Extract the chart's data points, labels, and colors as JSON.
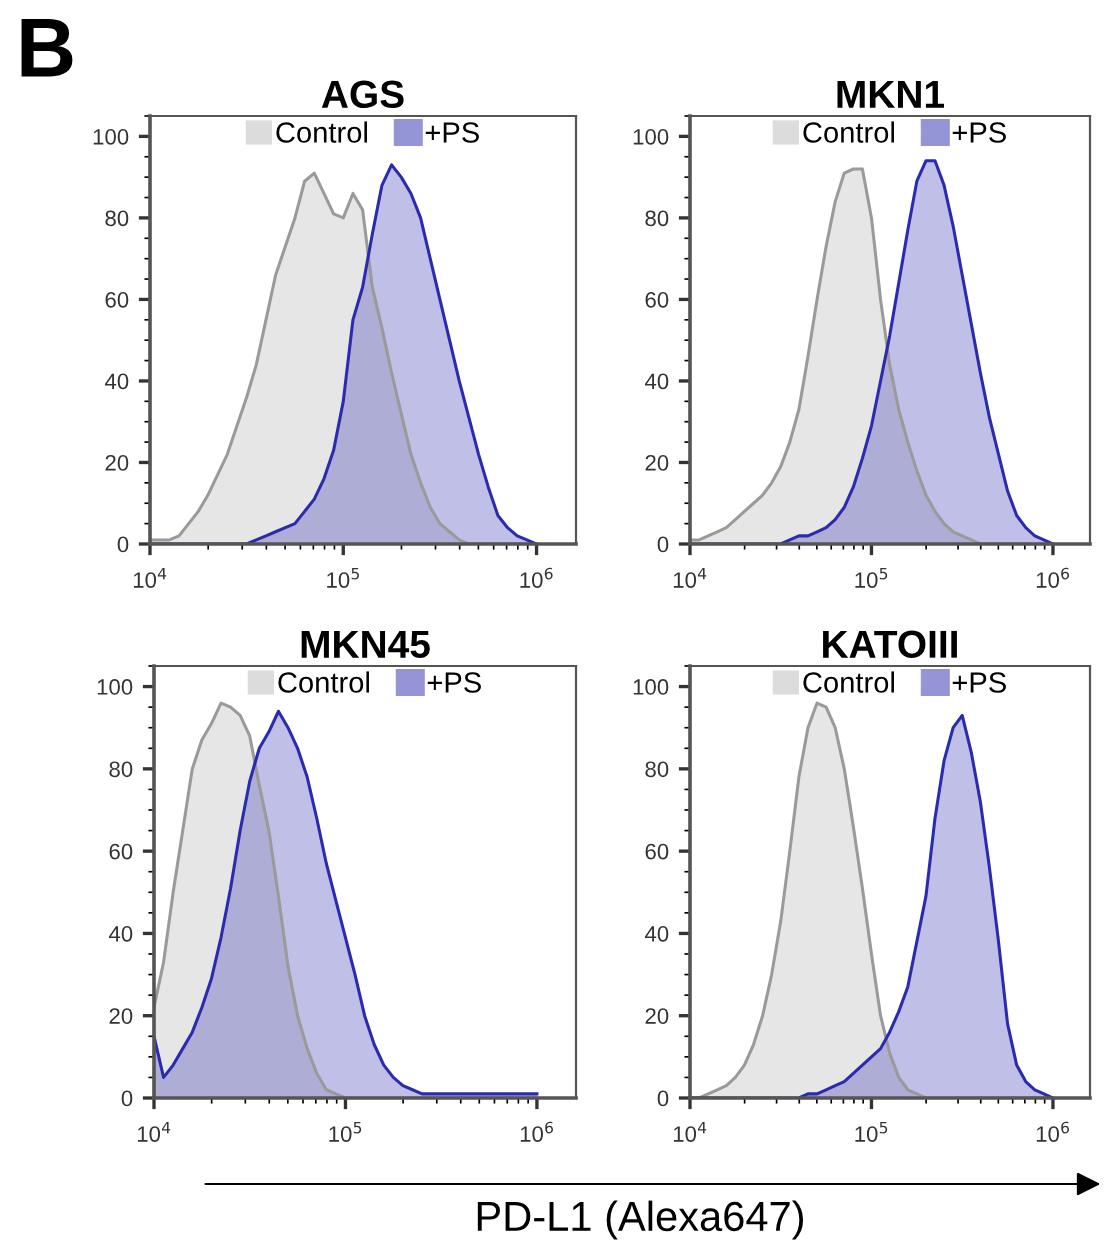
{
  "chart_data": [
    {
      "type": "area",
      "title": "AGS",
      "annotations": [
        "B"
      ],
      "legend": "top",
      "xlim": [
        10000,
        1600000
      ],
      "ylim": [
        0,
        105
      ],
      "log": "x",
      "xticks": [
        {
          "value": 10000,
          "label": "10$^{4}$"
        },
        {
          "value": 100000,
          "label": "10$^{5}$"
        },
        {
          "value": 1000000,
          "label": "10$^{6}$"
        }
      ],
      "yticks": [
        0,
        20,
        40,
        60,
        80,
        100
      ],
      "x": [
        10000,
        11220,
        12590,
        14130,
        15850,
        17780,
        19950,
        22390,
        25120,
        28180,
        31620,
        35480,
        39810,
        44670,
        50120,
        56230,
        63100,
        70790,
        79430,
        89130,
        100000,
        112200,
        125900,
        141300,
        158500,
        177800,
        199500,
        223900,
        251200,
        281800,
        316200,
        354800,
        398100,
        446700,
        501200,
        562300,
        631000,
        707900,
        794300,
        891300,
        1000000
      ],
      "series": [
        {
          "name": "Control",
          "color": "#9a9a9a",
          "values": [
            1,
            1,
            1,
            2,
            5,
            8,
            12,
            17,
            22,
            29,
            36,
            44,
            55,
            66,
            73,
            80,
            89,
            91,
            86,
            81,
            80,
            86,
            82,
            63,
            53,
            42,
            32,
            22,
            15,
            9,
            5,
            3,
            1,
            0,
            0,
            0,
            0,
            0,
            0,
            0,
            0
          ]
        },
        {
          "name": "+PS",
          "color": "#2b2bb0",
          "values": [
            0,
            0,
            0,
            0,
            0,
            0,
            0,
            0,
            0,
            0,
            0,
            1,
            2,
            3,
            4,
            5,
            8,
            11,
            16,
            23,
            35,
            55,
            63,
            76,
            88,
            93,
            90,
            86,
            80,
            70,
            60,
            50,
            40,
            31,
            22,
            14,
            7,
            4,
            2,
            1,
            0
          ]
        }
      ]
    },
    {
      "type": "area",
      "title": "MKN1",
      "legend": "top",
      "xlim": [
        10000,
        1600000
      ],
      "ylim": [
        0,
        105
      ],
      "log": "x",
      "xticks": [
        {
          "value": 10000,
          "label": "10$^{4}$"
        },
        {
          "value": 100000,
          "label": "10$^{5}$"
        },
        {
          "value": 1000000,
          "label": "10$^{6}$"
        }
      ],
      "yticks": [
        0,
        20,
        40,
        60,
        80,
        100
      ],
      "x": [
        10000,
        11220,
        12590,
        14130,
        15850,
        17780,
        19950,
        22390,
        25120,
        28180,
        31620,
        35480,
        39810,
        44670,
        50120,
        56230,
        63100,
        70790,
        79430,
        89130,
        100000,
        112200,
        125900,
        141300,
        158500,
        177800,
        199500,
        223900,
        251200,
        281800,
        316200,
        354800,
        398100,
        446700,
        501200,
        562300,
        631000,
        707900,
        794300,
        891300,
        1000000
      ],
      "series": [
        {
          "name": "Control",
          "color": "#9a9a9a",
          "values": [
            1,
            1,
            2,
            3,
            4,
            6,
            8,
            10,
            12,
            15,
            19,
            25,
            33,
            46,
            60,
            73,
            84,
            91,
            92,
            92,
            80,
            60,
            44,
            33,
            25,
            18,
            12,
            8,
            5,
            3,
            2,
            1,
            0,
            0,
            0,
            0,
            0,
            0,
            0,
            0,
            0
          ]
        },
        {
          "name": "+PS",
          "color": "#2b2bb0",
          "values": [
            0,
            0,
            0,
            0,
            0,
            0,
            0,
            0,
            0,
            0,
            0,
            1,
            2,
            2,
            3,
            4,
            6,
            9,
            14,
            21,
            29,
            40,
            51,
            64,
            77,
            89,
            94,
            94,
            88,
            78,
            66,
            54,
            42,
            31,
            22,
            13,
            7,
            4,
            2,
            1,
            0
          ]
        }
      ]
    },
    {
      "type": "area",
      "title": "MKN45",
      "legend": "top",
      "xlim": [
        10000,
        1600000
      ],
      "ylim": [
        0,
        105
      ],
      "log": "x",
      "xticks": [
        {
          "value": 10000,
          "label": "10$^{4}$"
        },
        {
          "value": 100000,
          "label": "10$^{5}$"
        },
        {
          "value": 1000000,
          "label": "10$^{6}$"
        }
      ],
      "yticks": [
        0,
        20,
        40,
        60,
        80,
        100
      ],
      "x": [
        10000,
        11220,
        12590,
        14130,
        15850,
        17780,
        19950,
        22390,
        25120,
        28180,
        31620,
        35480,
        39810,
        44670,
        50120,
        56230,
        63100,
        70790,
        79430,
        89130,
        100000,
        112200,
        125900,
        141300,
        158500,
        177800,
        199500,
        223900,
        251200,
        281800,
        316200,
        354800,
        398100,
        446700,
        501200,
        562300,
        631000,
        707900,
        794300,
        891300,
        1000000
      ],
      "series": [
        {
          "name": "Control",
          "color": "#9a9a9a",
          "values": [
            22,
            33,
            50,
            65,
            80,
            87,
            91,
            96,
            95,
            93,
            88,
            76,
            65,
            49,
            32,
            20,
            12,
            6,
            2,
            1,
            0,
            0,
            0,
            0,
            0,
            0,
            0,
            0,
            0,
            0,
            0,
            0,
            0,
            0,
            0,
            0,
            0,
            0,
            0,
            0,
            0
          ]
        },
        {
          "name": "+PS",
          "color": "#2b2bb0",
          "values": [
            15,
            5,
            8,
            12,
            16,
            22,
            29,
            39,
            51,
            65,
            77,
            85,
            89,
            94,
            90,
            85,
            78,
            68,
            57,
            48,
            39,
            30,
            20,
            13,
            8,
            5,
            3,
            2,
            1,
            1,
            1,
            1,
            1,
            1,
            1,
            1,
            1,
            1,
            1,
            1,
            1
          ]
        }
      ]
    },
    {
      "type": "area",
      "title": "KATOIII",
      "xlabel": "PD-L1 (Alexa647)",
      "legend": "top",
      "xlim": [
        10000,
        1600000
      ],
      "ylim": [
        0,
        105
      ],
      "log": "x",
      "xticks": [
        {
          "value": 10000,
          "label": "10$^{4}$"
        },
        {
          "value": 100000,
          "label": "10$^{5}$"
        },
        {
          "value": 1000000,
          "label": "10$^{6}$"
        }
      ],
      "yticks": [
        0,
        20,
        40,
        60,
        80,
        100
      ],
      "x": [
        10000,
        11220,
        12590,
        14130,
        15850,
        17780,
        19950,
        22390,
        25120,
        28180,
        31620,
        35480,
        39810,
        44670,
        50120,
        56230,
        63100,
        70790,
        79430,
        89130,
        100000,
        112200,
        125900,
        141300,
        158500,
        177800,
        199500,
        223900,
        251200,
        281800,
        316200,
        354800,
        398100,
        446700,
        501200,
        562300,
        631000,
        707900,
        794300,
        891300,
        1000000
      ],
      "series": [
        {
          "name": "Control",
          "color": "#9a9a9a",
          "values": [
            0,
            0,
            1,
            2,
            3,
            5,
            8,
            13,
            20,
            30,
            43,
            60,
            78,
            90,
            96,
            95,
            90,
            80,
            66,
            51,
            35,
            20,
            11,
            5,
            2,
            1,
            0,
            0,
            0,
            0,
            0,
            0,
            0,
            0,
            0,
            0,
            0,
            0,
            0,
            0,
            0
          ]
        },
        {
          "name": "+PS",
          "color": "#2b2bb0",
          "values": [
            0,
            0,
            0,
            0,
            0,
            0,
            0,
            0,
            0,
            0,
            0,
            0,
            0,
            1,
            1,
            2,
            3,
            4,
            6,
            8,
            10,
            12,
            16,
            21,
            27,
            38,
            49,
            68,
            82,
            90,
            93,
            84,
            72,
            56,
            38,
            18,
            8,
            4,
            2,
            1,
            0
          ]
        }
      ]
    }
  ]
}
